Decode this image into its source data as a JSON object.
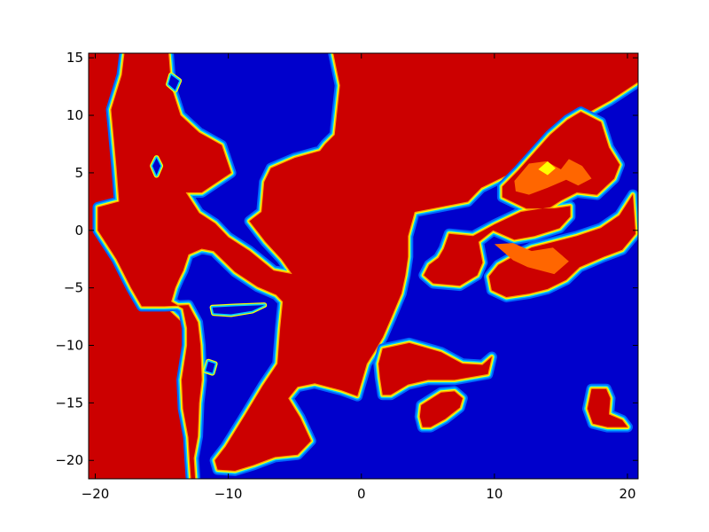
{
  "chart_data": {
    "type": "heatmap",
    "subtype": "filled-contour",
    "title": "",
    "xlabel": "",
    "ylabel": "",
    "xlim": [
      -20.5,
      20.8
    ],
    "ylim": [
      -21.6,
      15.4
    ],
    "x_ticks": [
      -20,
      -10,
      0,
      10,
      20
    ],
    "y_ticks": [
      -20,
      -15,
      -10,
      -5,
      0,
      5,
      10,
      15
    ],
    "x_tick_labels": [
      "−20",
      "−10",
      "0",
      "10",
      "20"
    ],
    "y_tick_labels": [
      "−20",
      "−15",
      "−10",
      "−5",
      "0",
      "5",
      "10",
      "15"
    ],
    "colormap": "jet",
    "grid": false,
    "legend": "none",
    "level_colors": {
      "low": "#0000cc",
      "edge1": "#0066ff",
      "edge2": "#00ccff",
      "mid": "#ffff00",
      "edge3": "#ff9900",
      "high2": "#ff6600",
      "high": "#cc0000"
    },
    "background_level": "low",
    "regions": [
      {
        "name": "west-landmass",
        "level": "high",
        "points": [
          [
            -20.5,
            15.4
          ],
          [
            -20.5,
            -21.6
          ],
          [
            -12.8,
            -21.6
          ],
          [
            -12.9,
            -20.0
          ],
          [
            -13.4,
            -18.0
          ],
          [
            -13.5,
            -15.5
          ],
          [
            -13.1,
            -13.0
          ],
          [
            -13.1,
            -10.0
          ],
          [
            -13.5,
            -8.0
          ],
          [
            -14.8,
            -6.6
          ],
          [
            -16.5,
            -6.6
          ],
          [
            -17.3,
            -5.0
          ],
          [
            -18.4,
            -2.5
          ],
          [
            -19.8,
            0.0
          ],
          [
            -19.8,
            2.0
          ],
          [
            -18.2,
            2.5
          ],
          [
            -18.4,
            5.5
          ],
          [
            -18.8,
            10.5
          ],
          [
            -18.0,
            13.5
          ],
          [
            -17.8,
            15.4
          ]
        ]
      },
      {
        "name": "central-landmass",
        "level": "high",
        "points": [
          [
            -14.5,
            15.4
          ],
          [
            -14.3,
            12.5
          ],
          [
            -13.6,
            10.0
          ],
          [
            -12.2,
            8.5
          ],
          [
            -10.5,
            7.4
          ],
          [
            -9.8,
            5.0
          ],
          [
            -12.0,
            3.3
          ],
          [
            -13.2,
            3.3
          ],
          [
            -12.2,
            1.5
          ],
          [
            -11.0,
            0.6
          ],
          [
            -10.0,
            -0.6
          ],
          [
            -8.4,
            -1.8
          ],
          [
            -6.6,
            -3.5
          ],
          [
            -5.2,
            -3.8
          ],
          [
            -6.0,
            -2.5
          ],
          [
            -7.2,
            -1.0
          ],
          [
            -8.4,
            0.8
          ],
          [
            -7.5,
            1.6
          ],
          [
            -7.3,
            4.2
          ],
          [
            -6.8,
            5.4
          ],
          [
            -5.0,
            6.3
          ],
          [
            -3.1,
            6.9
          ],
          [
            -2.7,
            7.5
          ],
          [
            -2.0,
            8.3
          ],
          [
            -1.6,
            12.6
          ],
          [
            -2.1,
            15.4
          ],
          [
            5.0,
            15.4
          ],
          [
            20.8,
            15.4
          ],
          [
            20.8,
            12.9
          ],
          [
            18.7,
            11.3
          ],
          [
            17.3,
            10.4
          ],
          [
            15.9,
            10.0
          ],
          [
            15.2,
            9.2
          ],
          [
            14.3,
            8.5
          ],
          [
            13.0,
            6.5
          ],
          [
            11.3,
            5.0
          ],
          [
            9.0,
            3.7
          ],
          [
            8.0,
            2.5
          ],
          [
            4.0,
            1.6
          ],
          [
            3.5,
            -0.5
          ],
          [
            3.5,
            -2.3
          ],
          [
            3.3,
            -3.9
          ],
          [
            3.0,
            -5.5
          ],
          [
            2.2,
            -7.7
          ],
          [
            1.6,
            -9.3
          ],
          [
            1.0,
            -10.5
          ],
          [
            0.4,
            -11.6
          ],
          [
            -0.1,
            -13.6
          ],
          [
            -0.3,
            -14.4
          ],
          [
            -1.5,
            -13.9
          ],
          [
            -3.5,
            -13.3
          ],
          [
            -4.8,
            -13.6
          ],
          [
            -5.5,
            -14.6
          ],
          [
            -4.6,
            -16.3
          ],
          [
            -3.8,
            -18.3
          ],
          [
            -4.8,
            -19.5
          ],
          [
            -6.5,
            -19.7
          ],
          [
            -8.1,
            -20.4
          ],
          [
            -9.5,
            -20.9
          ],
          [
            -10.8,
            -20.8
          ],
          [
            -11.0,
            -20.0
          ],
          [
            -10.2,
            -18.8
          ],
          [
            -9.5,
            -17.5
          ],
          [
            -8.7,
            -16.0
          ],
          [
            -7.4,
            -13.5
          ],
          [
            -6.3,
            -11.6
          ],
          [
            -6.1,
            -8.5
          ],
          [
            -5.9,
            -6.2
          ],
          [
            -6.4,
            -5.6
          ],
          [
            -7.8,
            -4.9
          ],
          [
            -9.5,
            -3.6
          ],
          [
            -11.1,
            -1.8
          ],
          [
            -12.0,
            -1.6
          ],
          [
            -13.0,
            -2.1
          ],
          [
            -13.4,
            -3.5
          ],
          [
            -13.7,
            -4.2
          ],
          [
            -14.0,
            -5.0
          ],
          [
            -14.3,
            -6.2
          ],
          [
            -13.4,
            -6.8
          ],
          [
            -13.1,
            -8.5
          ],
          [
            -13.1,
            -10.0
          ],
          [
            -13.5,
            -13.0
          ],
          [
            -13.4,
            -15.5
          ],
          [
            -13.0,
            -18.0
          ],
          [
            -12.9,
            -20.0
          ],
          [
            -12.8,
            -21.6
          ],
          [
            -12.5,
            -21.6
          ],
          [
            -12.6,
            -19.8
          ],
          [
            -12.3,
            -17.9
          ],
          [
            -12.2,
            -15.0
          ],
          [
            -12.0,
            -13.0
          ],
          [
            -12.1,
            -10.0
          ],
          [
            -12.3,
            -8.0
          ],
          [
            -13.0,
            -6.5
          ],
          [
            -14.8,
            -6.6
          ],
          [
            -16.5,
            -6.6
          ],
          [
            -17.3,
            -5.0
          ],
          [
            -18.4,
            -2.5
          ],
          [
            -19.8,
            0.0
          ],
          [
            -19.8,
            2.0
          ],
          [
            -18.2,
            2.5
          ],
          [
            -18.4,
            5.5
          ],
          [
            -18.8,
            10.5
          ],
          [
            -18.0,
            13.5
          ],
          [
            -17.8,
            15.4
          ]
        ]
      },
      {
        "name": "southeast-islands",
        "level": "high",
        "points": [
          [
            1.6,
            -10.3
          ],
          [
            3.6,
            -9.8
          ],
          [
            6.0,
            -10.6
          ],
          [
            7.6,
            -11.6
          ],
          [
            9.1,
            -11.7
          ],
          [
            9.8,
            -11.0
          ],
          [
            9.5,
            -12.5
          ],
          [
            7.0,
            -13.0
          ],
          [
            5.0,
            -13.0
          ],
          [
            3.5,
            -13.4
          ],
          [
            2.2,
            -14.3
          ],
          [
            1.6,
            -14.3
          ],
          [
            1.4,
            -12.8
          ],
          [
            1.3,
            -11.6
          ]
        ]
      },
      {
        "name": "south-island",
        "level": "high",
        "points": [
          [
            4.5,
            -15.2
          ],
          [
            6.0,
            -14.1
          ],
          [
            7.0,
            -14.0
          ],
          [
            7.6,
            -14.6
          ],
          [
            7.4,
            -15.4
          ],
          [
            6.3,
            -16.4
          ],
          [
            5.2,
            -17.1
          ],
          [
            4.6,
            -17.1
          ],
          [
            4.4,
            -16.2
          ]
        ]
      },
      {
        "name": "far-east-island",
        "level": "high",
        "points": [
          [
            17.3,
            -13.8
          ],
          [
            18.4,
            -13.8
          ],
          [
            18.7,
            -14.6
          ],
          [
            18.6,
            -16.0
          ],
          [
            19.6,
            -16.5
          ],
          [
            20.0,
            -17.1
          ],
          [
            18.5,
            -17.1
          ],
          [
            17.4,
            -16.8
          ],
          [
            17.0,
            -15.5
          ]
        ]
      },
      {
        "name": "east-peninsula",
        "level": "high",
        "points": [
          [
            6.6,
            -0.3
          ],
          [
            8.4,
            -0.5
          ],
          [
            10.0,
            0.5
          ],
          [
            12.0,
            1.6
          ],
          [
            14.2,
            2.0
          ],
          [
            15.0,
            2.6
          ],
          [
            16.2,
            3.3
          ],
          [
            17.7,
            3.1
          ],
          [
            19.0,
            4.5
          ],
          [
            19.4,
            5.7
          ],
          [
            18.6,
            7.2
          ],
          [
            18.0,
            9.4
          ],
          [
            16.5,
            10.3
          ],
          [
            15.5,
            9.6
          ],
          [
            14.2,
            8.3
          ],
          [
            11.8,
            5.2
          ],
          [
            10.6,
            3.8
          ],
          [
            10.6,
            2.9
          ],
          [
            12.4,
            1.9
          ],
          [
            14.5,
            1.9
          ],
          [
            15.7,
            2.1
          ],
          [
            15.7,
            1.2
          ],
          [
            14.9,
            0.2
          ],
          [
            13.0,
            -0.5
          ],
          [
            11.5,
            -0.8
          ],
          [
            9.9,
            0.0
          ],
          [
            8.8,
            -1.0
          ],
          [
            9.1,
            -2.8
          ],
          [
            8.7,
            -3.9
          ],
          [
            7.4,
            -4.8
          ],
          [
            5.4,
            -4.6
          ],
          [
            4.7,
            -3.9
          ],
          [
            5.1,
            -3.0
          ],
          [
            5.8,
            -2.4
          ],
          [
            6.2,
            -1.6
          ]
        ]
      },
      {
        "name": "east-inland",
        "level": "high",
        "points": [
          [
            10.3,
            -3.0
          ],
          [
            11.7,
            -2.1
          ],
          [
            12.8,
            -1.5
          ],
          [
            14.5,
            -1.0
          ],
          [
            16.2,
            -0.5
          ],
          [
            18.0,
            0.2
          ],
          [
            19.4,
            1.3
          ],
          [
            20.4,
            3.1
          ],
          [
            20.6,
            -0.3
          ],
          [
            19.6,
            -1.7
          ],
          [
            18.2,
            -2.3
          ],
          [
            16.4,
            -3.2
          ],
          [
            15.4,
            -4.3
          ],
          [
            14.0,
            -5.1
          ],
          [
            12.6,
            -5.5
          ],
          [
            10.9,
            -5.8
          ],
          [
            9.8,
            -5.2
          ],
          [
            9.6,
            -4.0
          ]
        ]
      },
      {
        "name": "ne-patch-a",
        "level": "high2",
        "points": [
          [
            11.5,
            4.3
          ],
          [
            12.6,
            5.8
          ],
          [
            13.9,
            6.0
          ],
          [
            15.0,
            5.3
          ],
          [
            15.6,
            6.2
          ],
          [
            16.6,
            5.6
          ],
          [
            17.3,
            4.5
          ],
          [
            16.3,
            3.9
          ],
          [
            15.4,
            4.4
          ],
          [
            14.0,
            3.7
          ],
          [
            12.6,
            3.1
          ],
          [
            11.6,
            3.4
          ]
        ]
      },
      {
        "name": "ne-patch-b",
        "level": "high2",
        "points": [
          [
            10.0,
            -1.2
          ],
          [
            11.4,
            -1.1
          ],
          [
            12.8,
            -1.8
          ],
          [
            14.4,
            -1.5
          ],
          [
            15.6,
            -2.7
          ],
          [
            14.5,
            -3.8
          ],
          [
            12.5,
            -3.2
          ],
          [
            11.4,
            -2.6
          ]
        ]
      },
      {
        "name": "ne-yellow-spot",
        "level": "mid",
        "points": [
          [
            13.3,
            5.3
          ],
          [
            14.0,
            6.0
          ],
          [
            14.6,
            5.4
          ],
          [
            14.0,
            4.8
          ]
        ]
      }
    ],
    "blue_holes": [
      {
        "name": "inland-lake",
        "points": [
          [
            -11.2,
            -6.7
          ],
          [
            -9.4,
            -6.6
          ],
          [
            -7.3,
            -6.5
          ],
          [
            -8.2,
            -7.0
          ],
          [
            -9.8,
            -7.3
          ],
          [
            -11.1,
            -7.2
          ]
        ]
      },
      {
        "name": "small-lake",
        "points": [
          [
            -11.5,
            -11.4
          ],
          [
            -11.0,
            -11.6
          ],
          [
            -11.2,
            -12.4
          ],
          [
            -11.7,
            -12.2
          ]
        ]
      },
      {
        "name": "north-lake",
        "points": [
          [
            -14.3,
            13.5
          ],
          [
            -13.7,
            13.0
          ],
          [
            -14.0,
            12.2
          ],
          [
            -14.5,
            12.7
          ]
        ]
      },
      {
        "name": "west-spot",
        "points": [
          [
            -15.4,
            6.3
          ],
          [
            -15.1,
            5.6
          ],
          [
            -15.4,
            4.8
          ],
          [
            -15.7,
            5.6
          ]
        ]
      }
    ]
  }
}
